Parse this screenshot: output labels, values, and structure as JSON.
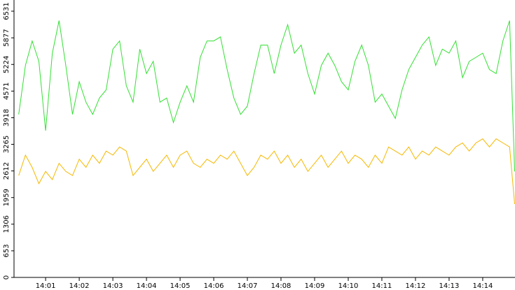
{
  "chart_data": {
    "type": "line",
    "x": [
      0.2,
      0.4,
      0.6,
      0.8,
      1.0,
      1.2,
      1.4,
      1.6,
      1.8,
      2.0,
      2.2,
      2.4,
      2.6,
      2.8,
      3.0,
      3.2,
      3.4,
      3.6,
      3.8,
      4.0,
      4.2,
      4.4,
      4.6,
      4.8,
      5.0,
      5.2,
      5.4,
      5.6,
      5.8,
      6.0,
      6.2,
      6.4,
      6.6,
      6.8,
      7.0,
      7.2,
      7.4,
      7.6,
      7.8,
      8.0,
      8.2,
      8.4,
      8.6,
      8.8,
      9.0,
      9.2,
      9.4,
      9.6,
      9.8,
      10.0,
      10.2,
      10.4,
      10.6,
      10.8,
      11.0,
      11.2,
      11.4,
      11.6,
      11.8,
      12.0,
      12.2,
      12.4,
      12.6,
      12.8,
      13.0,
      13.2,
      13.4,
      13.6,
      13.8,
      14.0,
      14.2,
      14.4,
      14.6,
      14.8,
      14.95
    ],
    "series": [
      {
        "color": "#33e033",
        "values": [
          4000,
          5200,
          5800,
          5300,
          3600,
          5500,
          6300,
          5200,
          4000,
          4800,
          4300,
          4000,
          4400,
          4600,
          5600,
          5800,
          4700,
          4300,
          5600,
          5000,
          5300,
          4300,
          4400,
          3800,
          4300,
          4700,
          4300,
          5400,
          5800,
          5800,
          5900,
          5100,
          4400,
          4000,
          4200,
          5000,
          5700,
          5700,
          5000,
          5700,
          6200,
          5500,
          5700,
          5000,
          4500,
          5200,
          5500,
          5200,
          4800,
          4600,
          5300,
          5700,
          5200,
          4300,
          4500,
          4200,
          3900,
          4600,
          5100,
          5400,
          5700,
          5900,
          5200,
          5600,
          5500,
          5800,
          4900,
          5300,
          5400,
          5500,
          5100,
          5000,
          5800,
          6300,
          2600
        ]
      },
      {
        "color": "#f5b800",
        "values": [
          2500,
          3000,
          2700,
          2300,
          2600,
          2400,
          2800,
          2600,
          2500,
          2900,
          2700,
          3000,
          2800,
          3100,
          3000,
          3200,
          3100,
          2500,
          2700,
          2900,
          2600,
          2800,
          3000,
          2700,
          3000,
          3100,
          2800,
          2700,
          2900,
          2800,
          3000,
          2900,
          3100,
          2800,
          2500,
          2700,
          3000,
          2900,
          3100,
          2800,
          3000,
          2700,
          2900,
          2600,
          2800,
          3000,
          2700,
          2900,
          3100,
          2800,
          3000,
          2900,
          2700,
          3000,
          2800,
          3200,
          3100,
          3000,
          3200,
          2900,
          3100,
          3000,
          3200,
          3100,
          3000,
          3200,
          3300,
          3100,
          3300,
          3400,
          3200,
          3400,
          3300,
          3200,
          1800
        ]
      }
    ],
    "xlim": [
      0.06,
      14.96
    ],
    "xticks": [
      {
        "value": 1,
        "label": "14:01"
      },
      {
        "value": 2,
        "label": "14:02"
      },
      {
        "value": 3,
        "label": "14:03"
      },
      {
        "value": 4,
        "label": "14:04"
      },
      {
        "value": 5,
        "label": "14:05"
      },
      {
        "value": 6,
        "label": "14:06"
      },
      {
        "value": 7,
        "label": "14:07"
      },
      {
        "value": 8,
        "label": "14:08"
      },
      {
        "value": 9,
        "label": "14:09"
      },
      {
        "value": 10,
        "label": "14:10"
      },
      {
        "value": 11,
        "label": "14:11"
      },
      {
        "value": 12,
        "label": "14:12"
      },
      {
        "value": 13,
        "label": "14:13"
      },
      {
        "value": 14,
        "label": "14:14"
      }
    ],
    "ylim": [
      0,
      6531
    ],
    "yticks": [
      0,
      653,
      1306,
      1959,
      2612,
      3265,
      3918,
      4571,
      5224,
      5877,
      6531
    ]
  }
}
